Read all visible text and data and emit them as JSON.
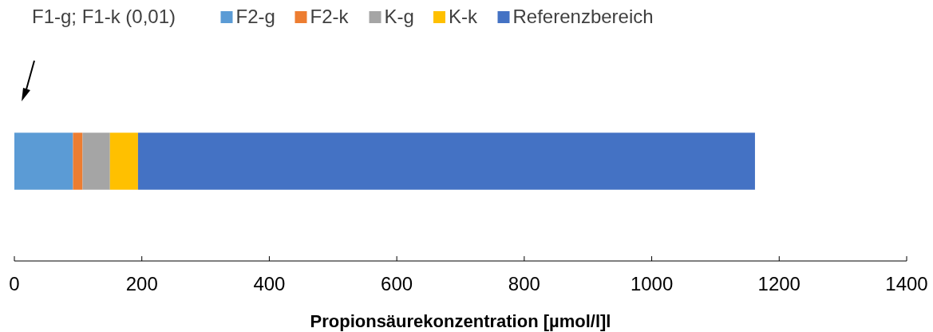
{
  "chart_data": {
    "type": "bar",
    "orientation": "horizontal",
    "stacked": true,
    "categories": [
      null
    ],
    "series": [
      {
        "name": "F2-g",
        "color": "#5b9bd5",
        "values": [
          92
        ]
      },
      {
        "name": "F2-k",
        "color": "#ed7d31",
        "values": [
          15
        ]
      },
      {
        "name": "K-g",
        "color": "#a5a5a5",
        "values": [
          43
        ]
      },
      {
        "name": "K-k",
        "color": "#ffc000",
        "values": [
          44
        ]
      },
      {
        "name": "Referenzbereich",
        "color": "#4472c4",
        "values": [
          968
        ]
      }
    ],
    "xlim": [
      0,
      1400
    ],
    "xticks": [
      0,
      200,
      400,
      600,
      800,
      1000,
      1200,
      1400
    ],
    "annotations": [
      "F1-g; F1-k (0,01)"
    ],
    "xlabel": "Propionsäurekonzentration [µmol/l]l",
    "legend": "top",
    "grid": false
  }
}
